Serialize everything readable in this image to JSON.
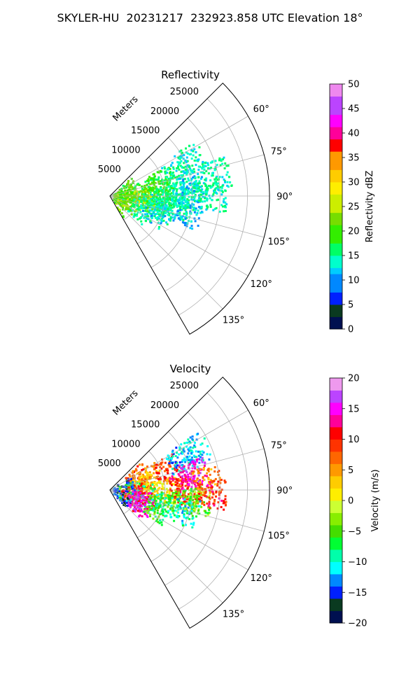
{
  "figure": {
    "title": "SKYLER-HU  20231217  232923.858 UTC Elevation 18°"
  },
  "chart_data": [
    {
      "type": "heatmap",
      "subtype": "polar-sector radar PPI",
      "title": "Reflectivity",
      "range_label": "Meters",
      "range_ticks": [
        5000,
        10000,
        15000,
        20000,
        25000
      ],
      "range_tick_labels": [
        "5000",
        "10000",
        "15000",
        "20000",
        "25000"
      ],
      "range_lim": [
        0,
        29000
      ],
      "azimuth_lim": [
        45,
        150
      ],
      "azimuth_ticks": [
        60,
        75,
        90,
        105,
        120,
        135
      ],
      "azimuth_tick_labels": [
        "60°",
        "75°",
        "90°",
        "105°",
        "120°",
        "135°"
      ],
      "grid": true,
      "colorbar": {
        "label": "Reflectivity dBZ",
        "vmin": 0,
        "vmax": 50,
        "ticks": [
          0,
          5,
          10,
          15,
          20,
          25,
          30,
          35,
          40,
          45,
          50
        ],
        "tick_labels": [
          "0",
          "5",
          "10",
          "15",
          "20",
          "25",
          "30",
          "35",
          "40",
          "45",
          "50"
        ],
        "stops": [
          [
            0,
            "#001050"
          ],
          [
            3,
            "#0a3a20"
          ],
          [
            5,
            "#0020ff"
          ],
          [
            8,
            "#0088ff"
          ],
          [
            11,
            "#00ccff"
          ],
          [
            13,
            "#00ffcc"
          ],
          [
            15,
            "#00ff66"
          ],
          [
            18,
            "#33ee00"
          ],
          [
            21,
            "#77dd00"
          ],
          [
            24,
            "#ccee00"
          ],
          [
            27,
            "#ffee00"
          ],
          [
            30,
            "#ffcc00"
          ],
          [
            33,
            "#ff9900"
          ],
          [
            36,
            "#ff0000"
          ],
          [
            39,
            "#ff0099"
          ],
          [
            41,
            "#ff00ff"
          ],
          [
            44,
            "#bb44ff"
          ],
          [
            47,
            "#ee88ee"
          ],
          [
            50,
            "#fff0ff"
          ]
        ]
      },
      "echo_cells": [
        {
          "az": 90,
          "r": 2500,
          "val": 21
        },
        {
          "az": 100,
          "r": 3500,
          "val": 23
        },
        {
          "az": 108,
          "r": 2500,
          "val": 22
        },
        {
          "az": 78,
          "r": 3500,
          "val": 20
        },
        {
          "az": 82,
          "r": 6500,
          "val": 19
        },
        {
          "az": 86,
          "r": 8000,
          "val": 20
        },
        {
          "az": 93,
          "r": 9000,
          "val": 17
        },
        {
          "az": 97,
          "r": 8000,
          "val": 15
        },
        {
          "az": 103,
          "r": 9500,
          "val": 14
        },
        {
          "az": 110,
          "r": 8500,
          "val": 13
        },
        {
          "az": 74,
          "r": 10000,
          "val": 18
        },
        {
          "az": 70,
          "r": 13000,
          "val": 15
        },
        {
          "az": 88,
          "r": 12000,
          "val": 16
        },
        {
          "az": 92,
          "r": 13000,
          "val": 14
        },
        {
          "az": 98,
          "r": 12000,
          "val": 15
        },
        {
          "az": 80,
          "r": 15000,
          "val": 13
        },
        {
          "az": 85,
          "r": 17000,
          "val": 14
        },
        {
          "az": 102,
          "r": 14500,
          "val": 12
        },
        {
          "az": 78,
          "r": 19500,
          "val": 15
        },
        {
          "az": 95,
          "r": 6000,
          "val": 24
        },
        {
          "az": 112,
          "r": 6000,
          "val": 16
        },
        {
          "az": 65,
          "r": 16000,
          "val": 14
        },
        {
          "az": 90,
          "r": 18500,
          "val": 15
        }
      ]
    },
    {
      "type": "heatmap",
      "subtype": "polar-sector radar PPI",
      "title": "Velocity",
      "range_label": "Meters",
      "range_ticks": [
        5000,
        10000,
        15000,
        20000,
        25000
      ],
      "range_tick_labels": [
        "5000",
        "10000",
        "15000",
        "20000",
        "25000"
      ],
      "range_lim": [
        0,
        29000
      ],
      "azimuth_lim": [
        45,
        150
      ],
      "azimuth_ticks": [
        60,
        75,
        90,
        105,
        120,
        135
      ],
      "azimuth_tick_labels": [
        "60°",
        "75°",
        "90°",
        "105°",
        "120°",
        "135°"
      ],
      "grid": true,
      "colorbar": {
        "label": "Velocity (m/s)",
        "vmin": -20,
        "vmax": 20,
        "ticks": [
          -20,
          -15,
          -10,
          -5,
          0,
          5,
          10,
          15,
          20
        ],
        "tick_labels": [
          "−20",
          "−15",
          "−10",
          "−5",
          "0",
          "5",
          "10",
          "15",
          "20"
        ],
        "stops": [
          [
            -20,
            "#001050"
          ],
          [
            -18,
            "#0a3a20"
          ],
          [
            -16,
            "#0020ff"
          ],
          [
            -14,
            "#0088ff"
          ],
          [
            -12,
            "#00ffff"
          ],
          [
            -10,
            "#00ffaa"
          ],
          [
            -8,
            "#00ff33"
          ],
          [
            -6,
            "#44dd00"
          ],
          [
            -4,
            "#88ee00"
          ],
          [
            -2,
            "#ccff33"
          ],
          [
            0,
            "#ffee00"
          ],
          [
            2,
            "#ffcc00"
          ],
          [
            4,
            "#ff9900"
          ],
          [
            6,
            "#ff6600"
          ],
          [
            8,
            "#ff3300"
          ],
          [
            10,
            "#ff0000"
          ],
          [
            12,
            "#ff0099"
          ],
          [
            14,
            "#ff00ff"
          ],
          [
            16,
            "#bb44ff"
          ],
          [
            18,
            "#ee99ee"
          ],
          [
            20,
            "#fff0ff"
          ]
        ]
      },
      "echo_cells": [
        {
          "az": 68,
          "r": 5500,
          "val": 8
        },
        {
          "az": 72,
          "r": 7500,
          "val": 5
        },
        {
          "az": 70,
          "r": 11000,
          "val": 9
        },
        {
          "az": 66,
          "r": 14000,
          "val": -12
        },
        {
          "az": 64,
          "r": 17000,
          "val": -11
        },
        {
          "az": 80,
          "r": 6000,
          "val": 4
        },
        {
          "az": 88,
          "r": 5000,
          "val": 2
        },
        {
          "az": 90,
          "r": 10000,
          "val": 1
        },
        {
          "az": 92,
          "r": 14000,
          "val": 9
        },
        {
          "az": 86,
          "r": 13000,
          "val": 12
        },
        {
          "az": 97,
          "r": 3500,
          "val": -5
        },
        {
          "az": 100,
          "r": 6000,
          "val": -9
        },
        {
          "az": 104,
          "r": 4000,
          "val": 11
        },
        {
          "az": 108,
          "r": 6500,
          "val": 13
        },
        {
          "az": 112,
          "r": 5500,
          "val": 15
        },
        {
          "az": 110,
          "r": 9000,
          "val": -6
        },
        {
          "az": 103,
          "r": 10500,
          "val": -8
        },
        {
          "az": 99,
          "r": 13500,
          "val": -3
        },
        {
          "az": 96,
          "r": 16000,
          "val": -4
        },
        {
          "az": 78,
          "r": 15500,
          "val": 15
        },
        {
          "az": 84,
          "r": 17500,
          "val": 6
        },
        {
          "az": 92,
          "r": 18500,
          "val": 10
        },
        {
          "az": 106,
          "r": 14000,
          "val": -10
        },
        {
          "az": 94,
          "r": 2500,
          "val": -14
        }
      ]
    }
  ]
}
